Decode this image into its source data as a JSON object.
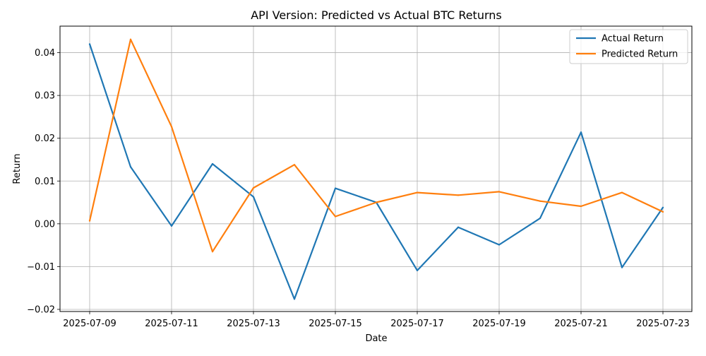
{
  "chart_data": {
    "type": "line",
    "title": "API Version: Predicted vs Actual BTC Returns",
    "xlabel": "Date",
    "ylabel": "Return",
    "x": [
      "2025-07-09",
      "2025-07-10",
      "2025-07-11",
      "2025-07-12",
      "2025-07-13",
      "2025-07-14",
      "2025-07-15",
      "2025-07-16",
      "2025-07-17",
      "2025-07-18",
      "2025-07-19",
      "2025-07-20",
      "2025-07-21",
      "2025-07-22",
      "2025-07-23"
    ],
    "xticks": [
      "2025-07-09",
      "2025-07-11",
      "2025-07-13",
      "2025-07-15",
      "2025-07-17",
      "2025-07-19",
      "2025-07-21",
      "2025-07-23"
    ],
    "yticks": [
      -0.02,
      -0.01,
      0.0,
      0.01,
      0.02,
      0.03,
      0.04
    ],
    "ytick_labels": [
      "−0.02",
      "−0.01",
      "0.00",
      "0.01",
      "0.02",
      "0.03",
      "0.04"
    ],
    "ylim": [
      -0.0205,
      0.0462
    ],
    "grid": true,
    "legend_position": "top-right",
    "series": [
      {
        "name": "Actual Return",
        "color": "#1f77b4",
        "values": [
          0.042,
          0.0133,
          -0.0005,
          0.014,
          0.0063,
          -0.0176,
          0.0083,
          0.005,
          -0.0109,
          -0.0008,
          -0.0049,
          0.0013,
          0.0214,
          -0.0102,
          0.0038
        ]
      },
      {
        "name": "Predicted Return",
        "color": "#ff7f0e",
        "values": [
          0.0007,
          0.0431,
          0.0227,
          -0.0065,
          0.0084,
          0.0138,
          0.0017,
          0.005,
          0.0073,
          0.0067,
          0.0075,
          0.0053,
          0.0041,
          0.0073,
          0.0028
        ]
      }
    ]
  }
}
